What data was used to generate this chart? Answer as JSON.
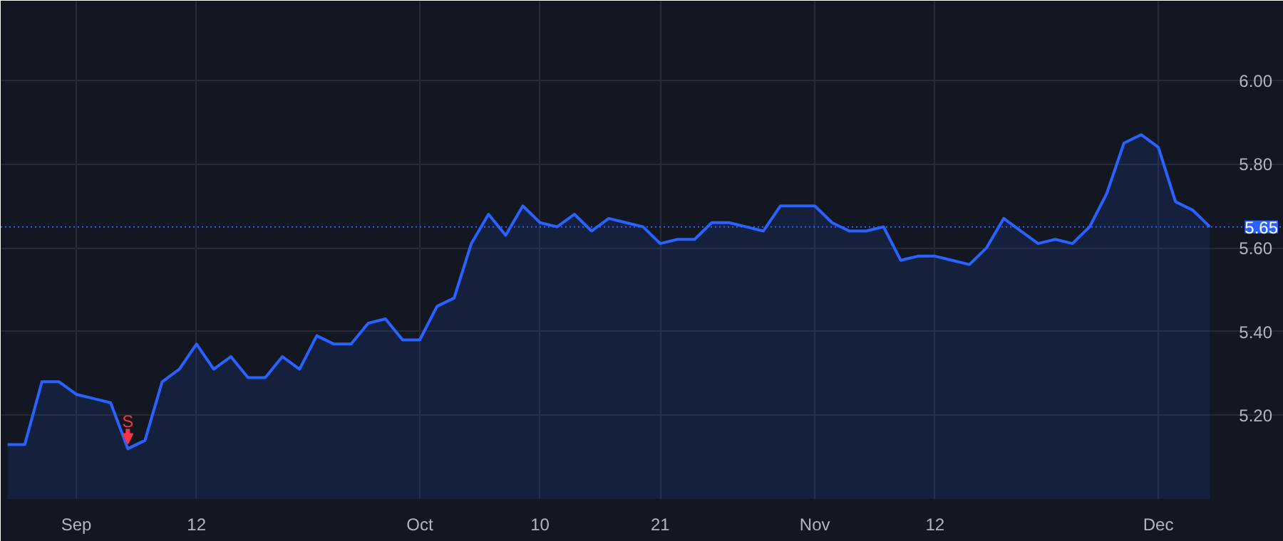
{
  "chart_data": {
    "type": "area",
    "categories": [
      null,
      null,
      null,
      null,
      "Sep",
      null,
      null,
      null,
      null,
      null,
      null,
      "12",
      null,
      null,
      null,
      null,
      null,
      null,
      null,
      null,
      null,
      null,
      null,
      null,
      "Oct",
      null,
      null,
      null,
      null,
      null,
      null,
      "10",
      null,
      null,
      null,
      null,
      null,
      null,
      "21",
      null,
      null,
      null,
      null,
      null,
      null,
      null,
      null,
      "Nov",
      null,
      null,
      null,
      null,
      null,
      null,
      "12",
      null,
      null,
      null,
      null,
      null,
      null,
      null,
      null,
      null,
      null,
      null,
      null,
      "Dec",
      null,
      null,
      null
    ],
    "series": [
      {
        "color": "#2962ff",
        "values": [
          5.13,
          5.13,
          5.28,
          5.28,
          5.25,
          5.24,
          5.23,
          5.12,
          5.14,
          5.28,
          5.31,
          5.37,
          5.31,
          5.34,
          5.29,
          5.29,
          5.34,
          5.31,
          5.39,
          5.37,
          5.37,
          5.42,
          5.43,
          5.38,
          5.38,
          5.46,
          5.48,
          5.61,
          5.68,
          5.63,
          5.7,
          5.66,
          5.65,
          5.68,
          5.64,
          5.67,
          5.66,
          5.65,
          5.61,
          5.62,
          5.62,
          5.66,
          5.66,
          5.65,
          5.64,
          5.7,
          5.7,
          5.7,
          5.66,
          5.64,
          5.64,
          5.65,
          5.57,
          5.58,
          5.58,
          5.57,
          5.56,
          5.6,
          5.67,
          5.64,
          5.61,
          5.62,
          5.61,
          5.65,
          5.73,
          5.85,
          5.87,
          5.84,
          5.71,
          5.69,
          5.65
        ]
      }
    ],
    "ylim": [
      5.0,
      6.19
    ],
    "yticks": [
      {
        "value": 5.2,
        "label": "5.20"
      },
      {
        "value": 5.4,
        "label": "5.40"
      },
      {
        "value": 5.6,
        "label": "5.60"
      },
      {
        "value": 5.8,
        "label": "5.80"
      },
      {
        "value": 6.0,
        "label": "6.00"
      }
    ],
    "grid": true,
    "ref_lines": [
      {
        "axis": "y",
        "value": 5.65,
        "label": "5.65",
        "color": "#2962ff",
        "line_style": "dotted"
      }
    ],
    "annotations": [
      {
        "text": "S",
        "y": 5.12
      }
    ]
  }
}
